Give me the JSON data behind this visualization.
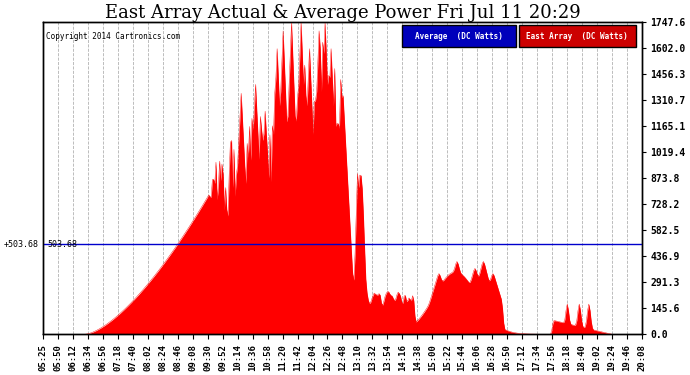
{
  "title": "East Array Actual & Average Power Fri Jul 11 20:29",
  "copyright": "Copyright 2014 Cartronics.com",
  "y_ticks": [
    0.0,
    145.6,
    291.3,
    436.9,
    582.5,
    728.2,
    873.8,
    1019.4,
    1165.1,
    1310.7,
    1456.3,
    1602.0,
    1747.6
  ],
  "avg_line_value": 503.68,
  "y_max": 1747.6,
  "y_min": 0.0,
  "legend_average_label": "Average  (DC Watts)",
  "legend_east_label": "East Array  (DC Watts)",
  "legend_average_bg": "#0000bb",
  "legend_east_bg": "#cc0000",
  "fill_color": "#ff0000",
  "avg_line_color": "#0000cc",
  "background_color": "#ffffff",
  "plot_bg_color": "#ffffff",
  "grid_color": "#aaaaaa",
  "title_fontsize": 13,
  "tick_label_fontsize": 6.5,
  "x_tick_labels": [
    "05:25",
    "05:50",
    "06:12",
    "06:34",
    "06:56",
    "07:18",
    "07:40",
    "08:02",
    "08:24",
    "08:46",
    "09:08",
    "09:30",
    "09:52",
    "10:14",
    "10:36",
    "10:58",
    "11:20",
    "11:42",
    "12:04",
    "12:26",
    "12:48",
    "13:10",
    "13:32",
    "13:54",
    "14:16",
    "14:38",
    "15:00",
    "15:22",
    "15:44",
    "16:06",
    "16:28",
    "16:50",
    "17:12",
    "17:34",
    "17:56",
    "18:18",
    "18:40",
    "19:02",
    "19:24",
    "19:46",
    "20:08"
  ]
}
